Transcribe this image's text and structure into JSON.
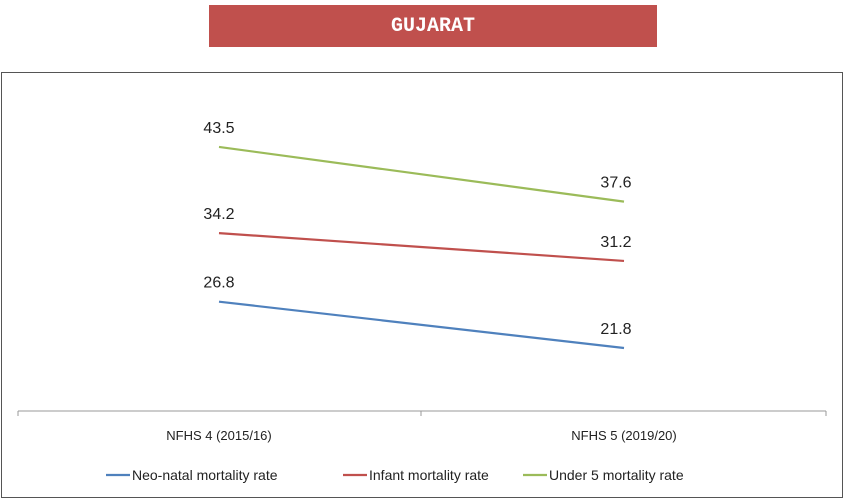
{
  "chart_data": {
    "type": "line",
    "title": "GUJARAT",
    "categories": [
      "NFHS 4 (2015/16)",
      "NFHS 5 (2019/20)"
    ],
    "series": [
      {
        "name": "Neo-natal mortality rate",
        "values": [
          26.8,
          21.8
        ],
        "color": "#4f81bd"
      },
      {
        "name": "Infant mortality rate",
        "values": [
          34.2,
          31.2
        ],
        "color": "#c0504d"
      },
      {
        "name": "Under 5 mortality rate",
        "values": [
          43.5,
          37.6
        ],
        "color": "#9bbb59"
      }
    ],
    "ylim": [
      15,
      49
    ],
    "grid": false,
    "legend": "bottom"
  }
}
